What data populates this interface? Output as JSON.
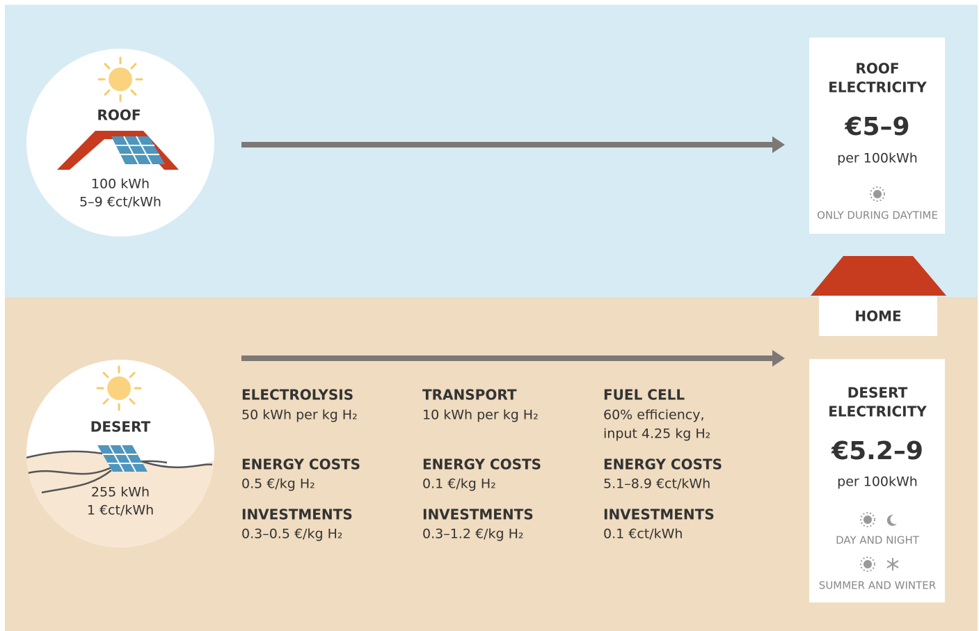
{
  "roof": {
    "label": "ROOF",
    "amount": "100 kWh",
    "price": "5–9 €ct/kWh"
  },
  "desert": {
    "label": "DESERT",
    "amount": "255 kWh",
    "price": "1 €ct/kWh"
  },
  "steps": [
    {
      "title": "ELECTROLYSIS",
      "detail": [
        "50 kWh per kg H₂"
      ],
      "energy_costs_label": "ENERGY COSTS",
      "energy_costs": "0.5 €/kg H₂",
      "investments_label": "INVESTMENTS",
      "investments": "0.3–0.5 €/kg H₂"
    },
    {
      "title": "TRANSPORT",
      "detail": [
        "10 kWh per kg H₂"
      ],
      "energy_costs_label": "ENERGY COSTS",
      "energy_costs": "0.1 €/kg H₂",
      "investments_label": "INVESTMENTS",
      "investments": "0.3–1.2 €/kg H₂"
    },
    {
      "title": "FUEL CELL",
      "detail": [
        "60% efficiency,",
        "input 4.25 kg H₂"
      ],
      "energy_costs_label": "ENERGY COSTS",
      "energy_costs": "5.1–8.9 €ct/kWh",
      "investments_label": "INVESTMENTS",
      "investments": "0.1 €ct/kWh"
    }
  ],
  "home": "HOME",
  "roof_card": {
    "title": [
      "ROOF",
      "ELECTRICITY"
    ],
    "price": "€5–9",
    "unit": "per 100kWh",
    "notes": [
      "ONLY DURING DAYTIME"
    ]
  },
  "desert_card": {
    "title": [
      "DESERT",
      "ELECTRICITY"
    ],
    "price": "€5.2–9",
    "unit": "per 100kWh",
    "notes": [
      "DAY AND NIGHT",
      "SUMMER AND WINTER"
    ]
  }
}
